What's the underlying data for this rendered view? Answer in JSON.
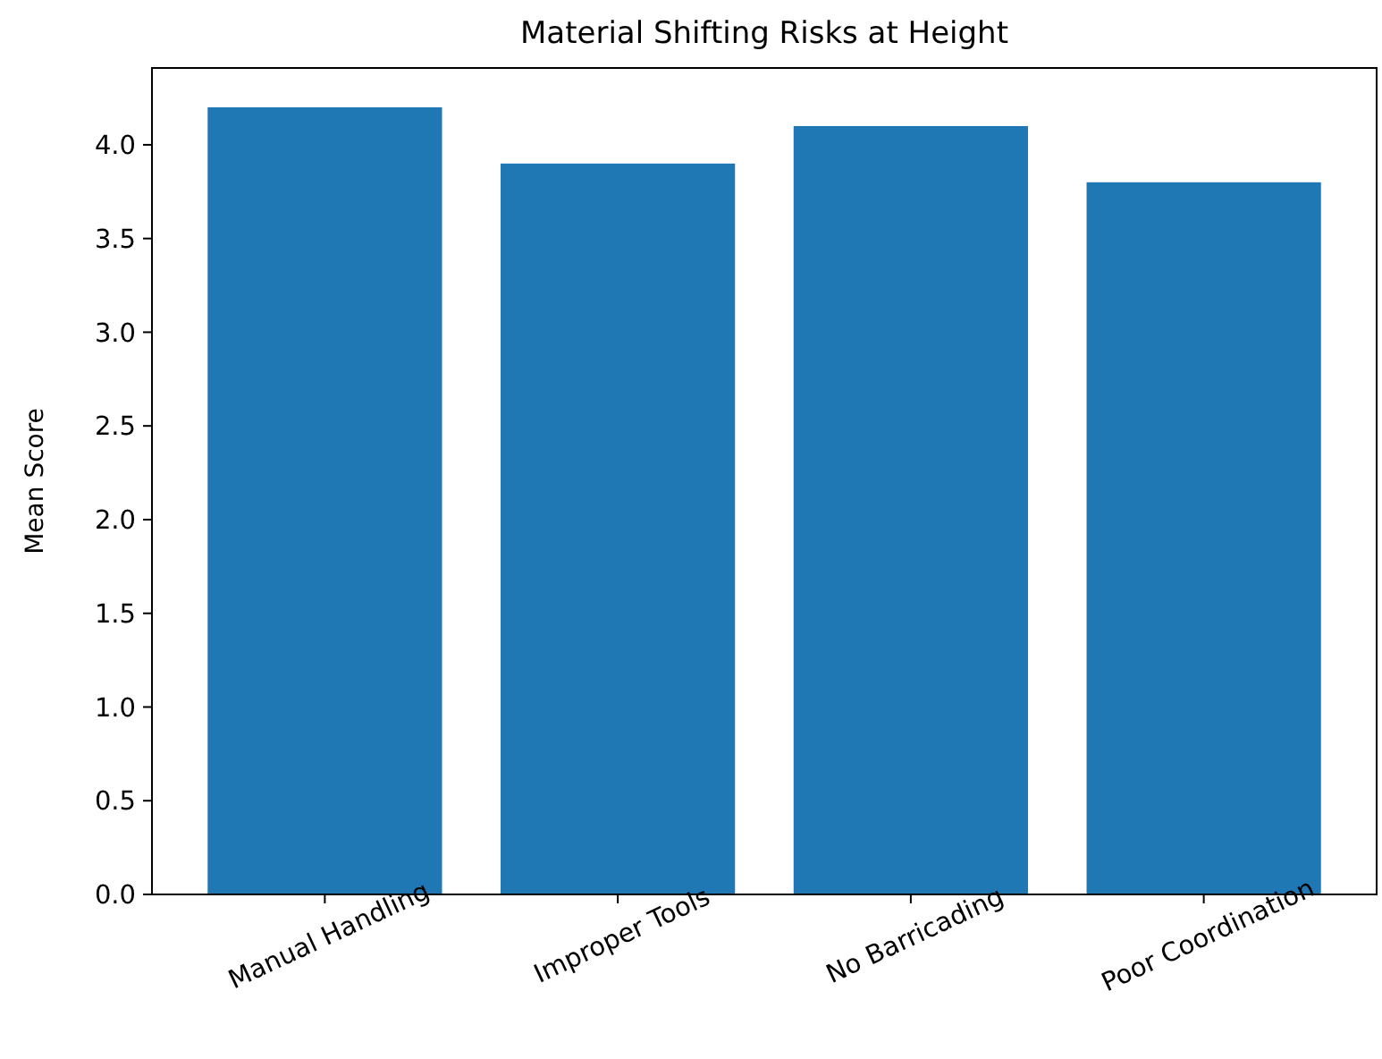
{
  "chart_data": {
    "type": "bar",
    "title": "Material Shifting Risks at Height",
    "ylabel": "Mean Score",
    "categories": [
      "Manual Handling",
      "Improper Tools",
      "No Barricading",
      "Poor Coordination"
    ],
    "values": [
      4.2,
      3.9,
      4.1,
      3.8
    ],
    "color": "#1f77b4",
    "ylim": [
      0,
      4.41
    ],
    "yticks": [
      {
        "value": 0,
        "label": "0.0"
      },
      {
        "value": 0.5,
        "label": "0.5"
      },
      {
        "value": 1,
        "label": "1.0"
      },
      {
        "value": 1.5,
        "label": "1.5"
      },
      {
        "value": 2,
        "label": "2.0"
      },
      {
        "value": 2.5,
        "label": "2.5"
      },
      {
        "value": 3,
        "label": "3.0"
      },
      {
        "value": 3.5,
        "label": "3.5"
      },
      {
        "value": 4,
        "label": "4.0"
      }
    ],
    "grid": false
  }
}
